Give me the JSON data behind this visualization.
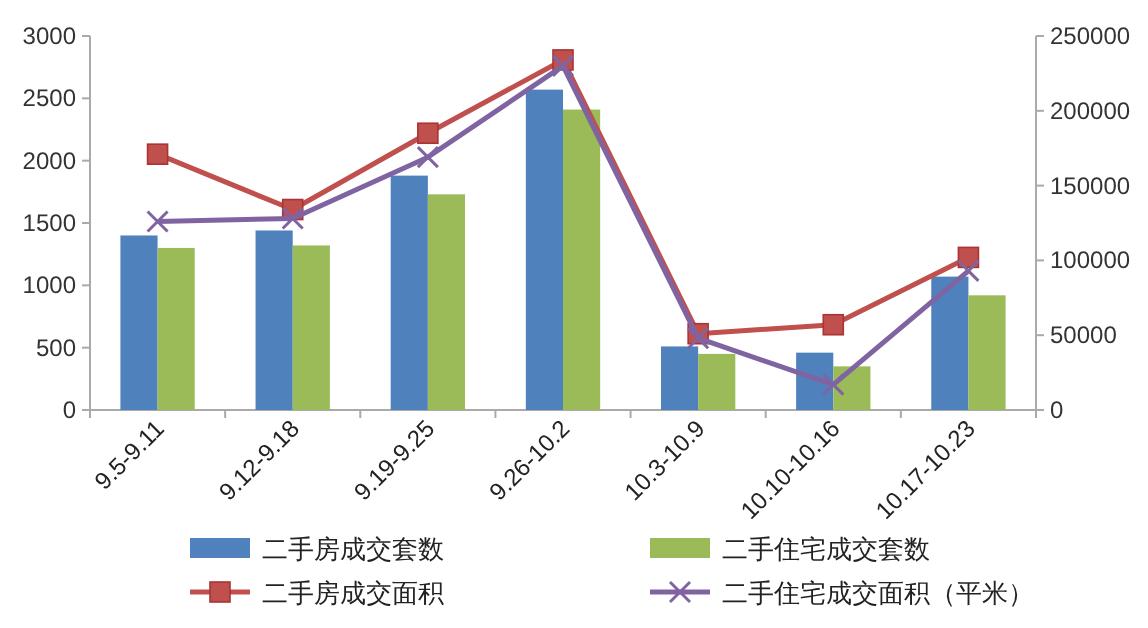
{
  "chart_data": {
    "type": "bar",
    "categories": [
      "9.5-9.11",
      "9.12-9.18",
      "9.19-9.25",
      "9.26-10.2",
      "10.3-10.9",
      "10.10-10.16",
      "10.17-10.23"
    ],
    "series": [
      {
        "name": "二手房成交套数",
        "color": "#4f81bd",
        "values": [
          1400,
          1440,
          1880,
          2570,
          510,
          460,
          1070
        ]
      },
      {
        "name": "二手住宅成交套数",
        "color": "#9bbb59",
        "values": [
          1300,
          1320,
          1730,
          2410,
          450,
          350,
          920
        ]
      },
      {
        "name": "二手房成交面积",
        "type": "line",
        "axis": "y2",
        "marker": "square",
        "color": "#c0504d",
        "values": [
          171000,
          134000,
          185000,
          234000,
          51000,
          57000,
          102000
        ]
      },
      {
        "name": "二手住宅成交面积（平米）",
        "type": "line",
        "axis": "y2",
        "marker": "cross",
        "color": "#8064a2",
        "values": [
          126000,
          128000,
          169000,
          230000,
          48000,
          17000,
          93000
        ]
      }
    ],
    "ylim": [
      0,
      3000
    ],
    "yticks": [
      0,
      500,
      1000,
      1500,
      2000,
      2500,
      3000
    ],
    "y2lim": [
      0,
      250000
    ],
    "y2ticks": [
      0,
      50000,
      100000,
      150000,
      200000,
      250000
    ],
    "legend": "bottom",
    "grid": false
  }
}
